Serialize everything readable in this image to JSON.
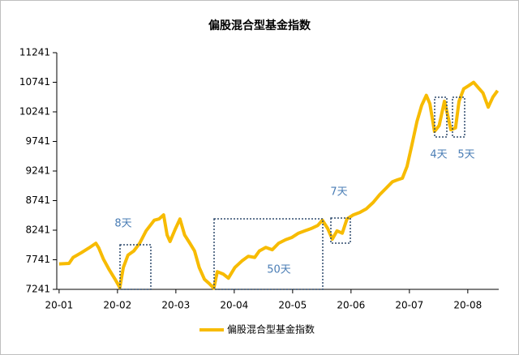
{
  "chart_data": {
    "type": "line",
    "title": "偏股混合型基金指数",
    "x": [
      1.0,
      1.17,
      1.24,
      1.38,
      1.51,
      1.63,
      1.68,
      1.76,
      1.86,
      1.96,
      2.04,
      2.1,
      2.18,
      2.28,
      2.38,
      2.49,
      2.63,
      2.71,
      2.79,
      2.85,
      2.9,
      2.99,
      3.07,
      3.15,
      3.24,
      3.32,
      3.4,
      3.49,
      3.57,
      3.65,
      3.71,
      3.81,
      3.9,
      4.01,
      4.13,
      4.24,
      4.35,
      4.43,
      4.54,
      4.65,
      4.76,
      4.88,
      4.99,
      5.1,
      5.21,
      5.32,
      5.43,
      5.51,
      5.6,
      5.68,
      5.76,
      5.85,
      5.93,
      6.04,
      6.15,
      6.26,
      6.38,
      6.49,
      6.6,
      6.71,
      6.79,
      6.88,
      6.96,
      7.04,
      7.13,
      7.21,
      7.29,
      7.35,
      7.43,
      7.51,
      7.6,
      7.65,
      7.71,
      7.79,
      7.85,
      7.93,
      8.01,
      8.1,
      8.18,
      8.26,
      8.35,
      8.43,
      8.51
    ],
    "series": [
      {
        "name": "偏股混合型基金指数",
        "color": "#f7bb00",
        "values": [
          7670,
          7680,
          7780,
          7860,
          7940,
          8020,
          7940,
          7750,
          7570,
          7410,
          7270,
          7610,
          7820,
          7890,
          8020,
          8230,
          8410,
          8430,
          8500,
          8160,
          8050,
          8260,
          8430,
          8160,
          8020,
          7890,
          7610,
          7410,
          7340,
          7260,
          7540,
          7500,
          7430,
          7610,
          7720,
          7800,
          7780,
          7890,
          7950,
          7910,
          8020,
          8080,
          8120,
          8190,
          8230,
          8270,
          8320,
          8410,
          8270,
          8090,
          8230,
          8190,
          8430,
          8500,
          8540,
          8600,
          8710,
          8840,
          8950,
          9060,
          9090,
          9120,
          9320,
          9670,
          10080,
          10350,
          10520,
          10380,
          9910,
          10010,
          10420,
          10210,
          9940,
          9970,
          10420,
          10630,
          10680,
          10740,
          10650,
          10560,
          10320,
          10490,
          10600
        ]
      }
    ],
    "xlim": [
      0.96,
      8.53
    ],
    "xticks": [
      {
        "value": 1,
        "label": "20-01"
      },
      {
        "value": 2,
        "label": "20-02"
      },
      {
        "value": 3,
        "label": "20-03"
      },
      {
        "value": 4,
        "label": "20-04"
      },
      {
        "value": 5,
        "label": "20-05"
      },
      {
        "value": 6,
        "label": "20-06"
      },
      {
        "value": 7,
        "label": "20-07"
      },
      {
        "value": 8,
        "label": "20-08"
      }
    ],
    "ylim": [
      7241,
      11241
    ],
    "yticks": [
      7241,
      7741,
      8241,
      8741,
      9241,
      9741,
      10241,
      10741,
      11241
    ],
    "grid": false,
    "legend": "bottom",
    "annotations": [
      "8天",
      "50天",
      "7天",
      "4天",
      "5天"
    ]
  }
}
